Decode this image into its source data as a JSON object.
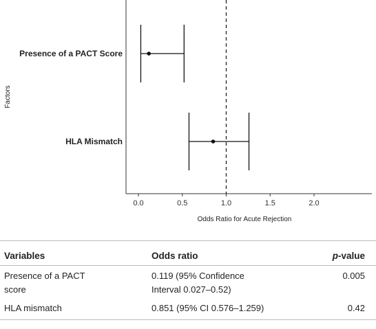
{
  "chart_data": {
    "type": "forest",
    "xlabel": "Odds Ratio for Acute Rejection",
    "ylabel": "Factors",
    "xlim": [
      -0.1,
      2.55
    ],
    "xticks": [
      0.0,
      0.5,
      1.0,
      1.5,
      2.0
    ],
    "xtick_labels": [
      "0.0",
      "0.5",
      "1.0",
      "1.5",
      "2.0"
    ],
    "reference_line": 1.0,
    "factors": [
      {
        "label": "Presence of a PACT Score",
        "estimate": 0.119,
        "ci_low": 0.027,
        "ci_high": 0.52
      },
      {
        "label": "HLA Mismatch",
        "estimate": 0.851,
        "ci_low": 0.576,
        "ci_high": 1.259
      }
    ]
  },
  "table": {
    "headers": {
      "variables": "Variables",
      "odds_ratio": "Odds ratio",
      "p_italic": "p",
      "p_rest": "-value"
    },
    "rows": [
      {
        "variable_line1": "Presence of a PACT",
        "variable_line2": "score",
        "or_line1": "0.119 (95% Confidence",
        "or_line2": "Interval 0.027–0.52)",
        "p": "0.005"
      },
      {
        "variable_line1": "HLA mismatch",
        "variable_line2": "",
        "or_line1": "0.851 (95% CI 0.576–1.259)",
        "or_line2": "",
        "p": "0.42"
      }
    ]
  }
}
